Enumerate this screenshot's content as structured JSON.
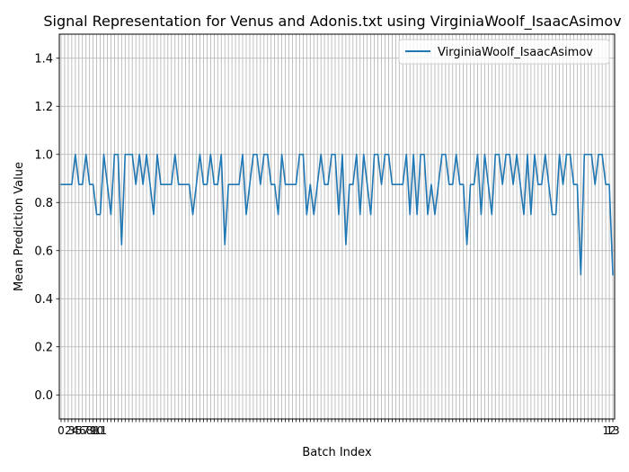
{
  "chart_data": {
    "type": "line",
    "title": "Signal Representation for Venus and Adonis.txt using VirginiaWoolf_IsaacAsimov",
    "xlabel": "Batch Index",
    "ylabel": "Mean Prediction Value",
    "xlim": [
      -0.5,
      155.5
    ],
    "ylim": [
      -0.1,
      1.5
    ],
    "y_ticks": [
      0.0,
      0.2,
      0.4,
      0.6,
      0.8,
      1.0,
      1.2,
      1.4
    ],
    "y_tick_labels": [
      "0.0",
      "0.2",
      "0.4",
      "0.6",
      "0.8",
      "1.0",
      "1.2",
      "1.4"
    ],
    "x_tick_step": 1,
    "x_tick_labels_legible": [
      "0",
      "2",
      "3",
      "4",
      "5",
      "6",
      "7",
      "8",
      "9",
      "10",
      "11",
      "12",
      "13"
    ],
    "grid": true,
    "legend_position": "top-right",
    "series": [
      {
        "name": "VirginiaWoolf_IsaacAsimov",
        "color": "#1f77b4",
        "x_start": 0,
        "values": [
          0.875,
          0.875,
          0.875,
          0.875,
          1.0,
          0.875,
          0.875,
          1.0,
          0.875,
          0.875,
          0.75,
          0.75,
          1.0,
          0.875,
          0.75,
          1.0,
          1.0,
          0.625,
          1.0,
          1.0,
          1.0,
          0.875,
          1.0,
          0.875,
          1.0,
          0.875,
          0.75,
          1.0,
          0.875,
          0.875,
          0.875,
          0.875,
          1.0,
          0.875,
          0.875,
          0.875,
          0.875,
          0.75,
          0.875,
          1.0,
          0.875,
          0.875,
          1.0,
          0.875,
          0.875,
          1.0,
          0.625,
          0.875,
          0.875,
          0.875,
          0.875,
          1.0,
          0.75,
          0.875,
          1.0,
          1.0,
          0.875,
          1.0,
          1.0,
          0.875,
          0.875,
          0.75,
          1.0,
          0.875,
          0.875,
          0.875,
          0.875,
          1.0,
          1.0,
          0.75,
          0.875,
          0.75,
          0.875,
          1.0,
          0.875,
          0.875,
          1.0,
          1.0,
          0.75,
          1.0,
          0.625,
          0.875,
          0.875,
          1.0,
          0.75,
          1.0,
          0.875,
          0.75,
          1.0,
          1.0,
          0.875,
          1.0,
          1.0,
          0.875,
          0.875,
          0.875,
          0.875,
          1.0,
          0.75,
          1.0,
          0.75,
          1.0,
          1.0,
          0.75,
          0.875,
          0.75,
          0.875,
          1.0,
          1.0,
          0.875,
          0.875,
          1.0,
          0.875,
          0.875,
          0.625,
          0.875,
          0.875,
          1.0,
          0.75,
          1.0,
          0.875,
          0.75,
          1.0,
          1.0,
          0.875,
          1.0,
          1.0,
          0.875,
          1.0,
          0.875,
          0.75,
          1.0,
          0.75,
          1.0,
          0.875,
          0.875,
          1.0,
          0.875,
          0.75,
          0.75,
          1.0,
          0.875,
          1.0,
          1.0,
          0.875,
          0.875,
          0.5,
          1.0,
          1.0,
          1.0,
          0.875,
          1.0,
          1.0,
          0.875,
          0.875,
          0.5
        ]
      }
    ]
  }
}
